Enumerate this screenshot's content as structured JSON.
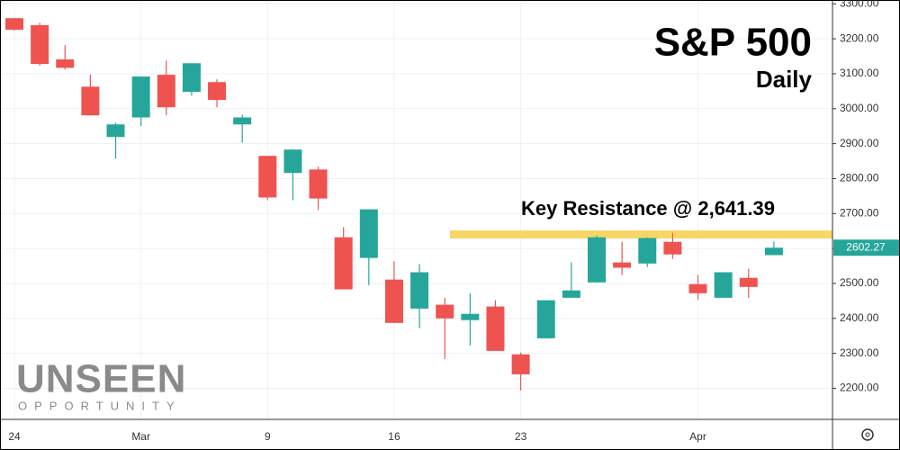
{
  "chart_data": {
    "type": "candlestick",
    "title": "S&P 500",
    "subtitle": "Daily",
    "watermark": {
      "title": "UNSEEN",
      "subtitle": "OPPORTUNITY"
    },
    "categories": [
      "24",
      null,
      null,
      null,
      null,
      "Mar",
      null,
      null,
      null,
      null,
      "9",
      null,
      null,
      null,
      null,
      "16",
      null,
      null,
      null,
      null,
      "23",
      null,
      null,
      null,
      null,
      null,
      null,
      "Apr",
      null,
      null,
      null
    ],
    "open": [
      3259,
      3239,
      3141,
      3063,
      2919,
      2975,
      3097,
      3048,
      3076,
      2955,
      2865,
      2816,
      2826,
      2632,
      2573,
      2511,
      2428,
      2439,
      2395,
      2434,
      2297,
      2343,
      2459,
      2503,
      2560,
      2557,
      2619,
      2498,
      2459,
      2516,
      2581
    ],
    "high": [
      3259,
      3246,
      3182,
      3097,
      2960,
      3092,
      3138,
      3130,
      3084,
      2983,
      2865,
      2883,
      2834,
      2661,
      2712,
      2563,
      2555,
      2459,
      2472,
      2452,
      2302,
      2452,
      2560,
      2637,
      2619,
      2632,
      2645,
      2524,
      2532,
      2542,
      2620
    ],
    "low": [
      3223,
      3123,
      3112,
      2981,
      2857,
      2950,
      2981,
      3037,
      3004,
      2903,
      2738,
      2738,
      2710,
      2483,
      2495,
      2387,
      2372,
      2284,
      2323,
      2307,
      2194,
      2343,
      2459,
      2503,
      2524,
      2547,
      2570,
      2454,
      2459,
      2459,
      2581
    ],
    "close": [
      3226,
      3128,
      3117,
      2981,
      2955,
      3092,
      3004,
      3130,
      3025,
      2975,
      2746,
      2883,
      2743,
      2483,
      2712,
      2387,
      2532,
      2400,
      2413,
      2307,
      2240,
      2452,
      2480,
      2632,
      2545,
      2630,
      2583,
      2472,
      2532,
      2490,
      2602.27
    ],
    "up_color": "#26a69a",
    "down_color": "#ef5350",
    "ylim": [
      2111,
      3311
    ],
    "yticks": [
      {
        "value": 2200,
        "label": "2200.00"
      },
      {
        "value": 2300,
        "label": "2300.00"
      },
      {
        "value": 2400,
        "label": "2400.00"
      },
      {
        "value": 2500,
        "label": "2500.00"
      },
      {
        "value": 2600,
        "label": "2600.00"
      },
      {
        "value": 2700,
        "label": "2700.00"
      },
      {
        "value": 2800,
        "label": "2800.00"
      },
      {
        "value": 2900,
        "label": "2900.00"
      },
      {
        "value": 3000,
        "label": "3000.00"
      },
      {
        "value": 3100,
        "label": "3100.00"
      },
      {
        "value": 3200,
        "label": "3200.00"
      },
      {
        "value": 3300,
        "label": "3300.00"
      }
    ],
    "last_price": 2602.27,
    "resistance": 2641.39,
    "resistance_color": "#f7d668",
    "annotation": "Key Resistance @ 2,641.39",
    "grid": true
  }
}
